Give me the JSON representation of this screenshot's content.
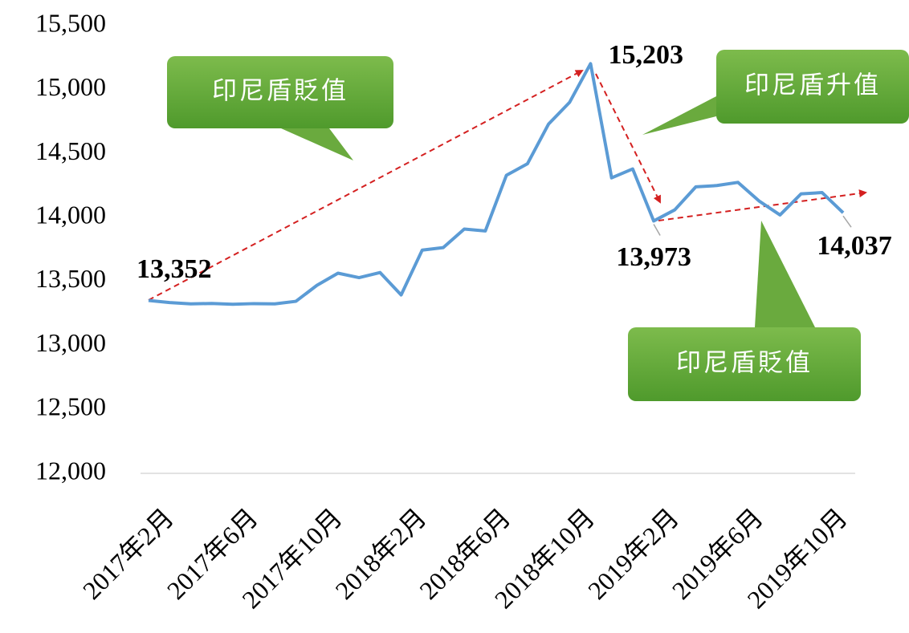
{
  "chart_data": {
    "type": "line",
    "categories": [
      "2017年2月",
      null,
      null,
      null,
      "2017年6月",
      null,
      null,
      null,
      "2017年10月",
      null,
      null,
      null,
      "2018年2月",
      null,
      null,
      null,
      "2018年6月",
      null,
      null,
      null,
      "2018年10月",
      null,
      null,
      null,
      "2019年2月",
      null,
      null,
      null,
      "2019年6月",
      null,
      null,
      null,
      "2019年10月",
      null
    ],
    "series": [
      {
        "color": "#5b9bd5",
        "values": [
          13352,
          13335,
          13325,
          13328,
          13322,
          13327,
          13325,
          13345,
          13470,
          13565,
          13530,
          13570,
          13395,
          13745,
          13765,
          13910,
          13895,
          14330,
          14420,
          14730,
          14900,
          15203,
          14310,
          14380,
          13973,
          14060,
          14240,
          14250,
          14275,
          14130,
          14020,
          14185,
          14195,
          14037
        ],
        "value_labels": [
          "13,352",
          null,
          null,
          null,
          null,
          null,
          null,
          null,
          null,
          null,
          null,
          null,
          null,
          null,
          null,
          null,
          null,
          null,
          null,
          null,
          null,
          "15,203",
          null,
          null,
          "13,973",
          null,
          null,
          null,
          null,
          null,
          null,
          null,
          null,
          "14,037"
        ]
      }
    ],
    "ylim": [
      12000,
      15500
    ],
    "yticks": [
      {
        "value": 12000,
        "label": "12,000"
      },
      {
        "value": 12500,
        "label": "12,500"
      },
      {
        "value": 13000,
        "label": "13,000"
      },
      {
        "value": 13500,
        "label": "13,500"
      },
      {
        "value": 14000,
        "label": "14,000"
      },
      {
        "value": 14500,
        "label": "14,500"
      },
      {
        "value": 15000,
        "label": "15,000"
      },
      {
        "value": 15500,
        "label": "15,500"
      }
    ],
    "callouts": [
      "印尼盾貶值",
      "印尼盾升值",
      "印尼盾貶值"
    ]
  }
}
